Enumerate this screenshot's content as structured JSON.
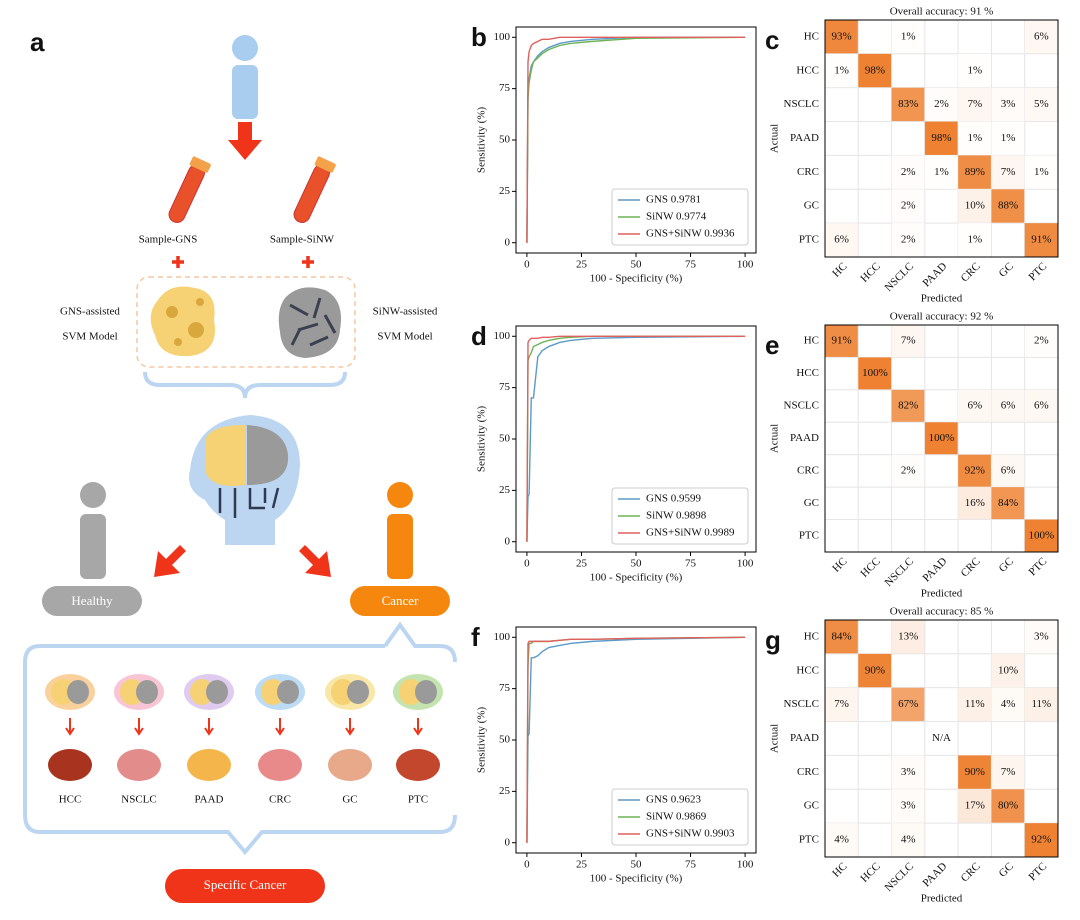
{
  "figure": {
    "label": "a",
    "samples": [
      "Sample-GNS",
      "Sample-SiNW"
    ],
    "models": [
      {
        "name": "GNS-assisted",
        "kind": "SVM Model"
      },
      {
        "name": "SiNW-assisted",
        "kind": "SVM Model"
      }
    ],
    "outcomes": [
      "Healthy",
      "Cancer"
    ],
    "cancers": [
      "HCC",
      "NSCLC",
      "PAAD",
      "CRC",
      "GC",
      "PTC"
    ],
    "result": "Specific Cancer"
  },
  "chart_data": [
    {
      "type": "line",
      "label": "b",
      "xlabel": "100 - Specificity (%)",
      "ylabel": "Sensitivity (%)",
      "x": [
        0,
        0.5,
        1,
        2,
        3,
        5,
        7,
        10,
        15,
        20,
        30,
        50,
        100
      ],
      "series": [
        {
          "name": "GNS 0.9781",
          "color": "#5b9ac6",
          "values": [
            0,
            73,
            80,
            86,
            88,
            91,
            93,
            95,
            97,
            98,
            99,
            100,
            100
          ]
        },
        {
          "name": "SiNW 0.9774",
          "color": "#6db356",
          "values": [
            0,
            70,
            78,
            84,
            88,
            90,
            92,
            94,
            96,
            97,
            98,
            99.5,
            100
          ]
        },
        {
          "name": "GNS+SiNW 0.9936",
          "color": "#e0605e",
          "values": [
            0,
            88,
            93,
            96,
            97,
            98,
            99,
            99,
            100,
            100,
            100,
            100,
            100
          ]
        }
      ],
      "xlim": [
        -5,
        105
      ],
      "ylim": [
        -5,
        105
      ],
      "xticks": [
        0,
        25,
        50,
        75,
        100
      ],
      "yticks": [
        0,
        25,
        50,
        75,
        100
      ]
    },
    {
      "type": "heatmap",
      "label": "c",
      "title": "Overall accuracy: 91 %",
      "xlabel": "Predicted",
      "ylabel": "Actual",
      "color": "#ee8232",
      "categories": [
        "HC",
        "HCC",
        "NSCLC",
        "PAAD",
        "CRC",
        "GC",
        "PTC"
      ],
      "values": [
        [
          93,
          null,
          1,
          null,
          null,
          null,
          6
        ],
        [
          1,
          98,
          null,
          null,
          1,
          null,
          null
        ],
        [
          null,
          null,
          83,
          2,
          7,
          3,
          5
        ],
        [
          null,
          null,
          null,
          98,
          1,
          1,
          null
        ],
        [
          null,
          null,
          2,
          1,
          89,
          7,
          1
        ],
        [
          null,
          null,
          2,
          null,
          10,
          88,
          null
        ],
        [
          6,
          null,
          2,
          null,
          1,
          null,
          91
        ]
      ],
      "value_labels": [
        [
          "93%",
          null,
          "1%",
          null,
          null,
          null,
          "6%"
        ],
        [
          "1%",
          "98%",
          null,
          null,
          "1%",
          null,
          null
        ],
        [
          null,
          null,
          "83%",
          "2%",
          "7%",
          "3%",
          "5%"
        ],
        [
          null,
          null,
          null,
          "98%",
          "1%",
          "1%",
          null
        ],
        [
          null,
          null,
          "2%",
          "1%",
          "89%",
          "7%",
          "1%"
        ],
        [
          null,
          null,
          "2%",
          null,
          "10%",
          "88%",
          null
        ],
        [
          "6%",
          null,
          "2%",
          null,
          "1%",
          null,
          "91%"
        ]
      ]
    },
    {
      "type": "line",
      "label": "d",
      "xlabel": "100 - Specificity (%)",
      "ylabel": "Sensitivity (%)",
      "x": [
        0,
        0.5,
        1,
        2,
        3,
        5,
        7,
        10,
        15,
        20,
        30,
        50,
        100
      ],
      "series": [
        {
          "name": "GNS 0.9599",
          "color": "#5b9ac6",
          "values": [
            0,
            22,
            23,
            70,
            70,
            90,
            93,
            95,
            97,
            98,
            99,
            99.5,
            100
          ]
        },
        {
          "name": "SiNW 0.9898",
          "color": "#6db356",
          "values": [
            0,
            88,
            90,
            92,
            95,
            96,
            97,
            98,
            99,
            99.5,
            100,
            100,
            100
          ]
        },
        {
          "name": "GNS+SiNW 0.9989",
          "color": "#e0605e",
          "values": [
            0,
            97,
            98,
            99,
            99,
            99,
            99.5,
            99.5,
            100,
            100,
            100,
            100,
            100
          ]
        }
      ],
      "xlim": [
        -5,
        105
      ],
      "ylim": [
        -5,
        105
      ],
      "xticks": [
        0,
        25,
        50,
        75,
        100
      ],
      "yticks": [
        0,
        25,
        50,
        75,
        100
      ]
    },
    {
      "type": "heatmap",
      "label": "e",
      "title": "Overall accuracy: 92 %",
      "xlabel": "Predicted",
      "ylabel": "Actual",
      "color": "#ee8232",
      "categories": [
        "HC",
        "HCC",
        "NSCLC",
        "PAAD",
        "CRC",
        "GC",
        "PTC"
      ],
      "values": [
        [
          91,
          null,
          7,
          null,
          null,
          null,
          2
        ],
        [
          null,
          100,
          null,
          null,
          null,
          null,
          null
        ],
        [
          null,
          null,
          82,
          null,
          6,
          6,
          6
        ],
        [
          null,
          null,
          null,
          100,
          null,
          null,
          null
        ],
        [
          null,
          null,
          2,
          null,
          92,
          6,
          null
        ],
        [
          null,
          null,
          null,
          null,
          16,
          84,
          null
        ],
        [
          null,
          null,
          null,
          null,
          null,
          null,
          100
        ]
      ],
      "value_labels": [
        [
          "91%",
          null,
          "7%",
          null,
          null,
          null,
          "2%"
        ],
        [
          null,
          "100%",
          null,
          null,
          null,
          null,
          null
        ],
        [
          null,
          null,
          "82%",
          null,
          "6%",
          "6%",
          "6%"
        ],
        [
          null,
          null,
          null,
          "100%",
          null,
          null,
          null
        ],
        [
          null,
          null,
          "2%",
          null,
          "92%",
          "6%",
          null
        ],
        [
          null,
          null,
          null,
          null,
          "16%",
          "84%",
          null
        ],
        [
          null,
          null,
          null,
          null,
          null,
          null,
          "100%"
        ]
      ]
    },
    {
      "type": "line",
      "label": "f",
      "xlabel": "100 - Specificity (%)",
      "ylabel": "Sensitivity (%)",
      "x": [
        0,
        0.5,
        1,
        2,
        3,
        5,
        7,
        10,
        15,
        20,
        30,
        50,
        100
      ],
      "series": [
        {
          "name": "GNS 0.9623",
          "color": "#5b9ac6",
          "values": [
            0,
            52,
            53,
            90,
            90,
            91,
            93,
            95,
            96,
            97,
            98,
            99,
            100
          ]
        },
        {
          "name": "SiNW 0.9869",
          "color": "#6db356",
          "values": [
            0,
            86,
            97,
            97,
            98,
            98,
            98,
            98,
            98.5,
            99,
            99,
            99.5,
            100
          ]
        },
        {
          "name": "GNS+SiNW 0.9903",
          "color": "#e0605e",
          "values": [
            0,
            97,
            98,
            98,
            98,
            98,
            98,
            98,
            98.5,
            99,
            99,
            99.5,
            100
          ]
        }
      ],
      "xlim": [
        -5,
        105
      ],
      "ylim": [
        -5,
        105
      ],
      "xticks": [
        0,
        25,
        50,
        75,
        100
      ],
      "yticks": [
        0,
        25,
        50,
        75,
        100
      ]
    },
    {
      "type": "heatmap",
      "label": "g",
      "title": "Overall accuracy: 85 %",
      "xlabel": "Predicted",
      "ylabel": "Actual",
      "color": "#ee8232",
      "categories": [
        "HC",
        "HCC",
        "NSCLC",
        "PAAD",
        "CRC",
        "GC",
        "PTC"
      ],
      "values": [
        [
          84,
          null,
          13,
          null,
          null,
          null,
          3
        ],
        [
          null,
          90,
          null,
          null,
          null,
          10,
          null
        ],
        [
          7,
          null,
          67,
          null,
          11,
          4,
          11
        ],
        [
          null,
          null,
          null,
          null,
          null,
          null,
          null
        ],
        [
          null,
          null,
          3,
          null,
          90,
          7,
          null
        ],
        [
          null,
          null,
          3,
          null,
          17,
          80,
          null
        ],
        [
          4,
          null,
          4,
          null,
          null,
          null,
          92
        ]
      ],
      "value_labels": [
        [
          "84%",
          null,
          "13%",
          null,
          null,
          null,
          "3%"
        ],
        [
          null,
          "90%",
          null,
          null,
          null,
          "10%",
          null
        ],
        [
          "7%",
          null,
          "67%",
          null,
          "11%",
          "4%",
          "11%"
        ],
        [
          null,
          null,
          null,
          "N/A",
          null,
          null,
          null
        ],
        [
          null,
          null,
          "3%",
          null,
          "90%",
          "7%",
          null
        ],
        [
          null,
          null,
          "3%",
          null,
          "17%",
          "80%",
          null
        ],
        [
          "4%",
          null,
          "4%",
          null,
          null,
          null,
          "92%"
        ]
      ]
    }
  ]
}
